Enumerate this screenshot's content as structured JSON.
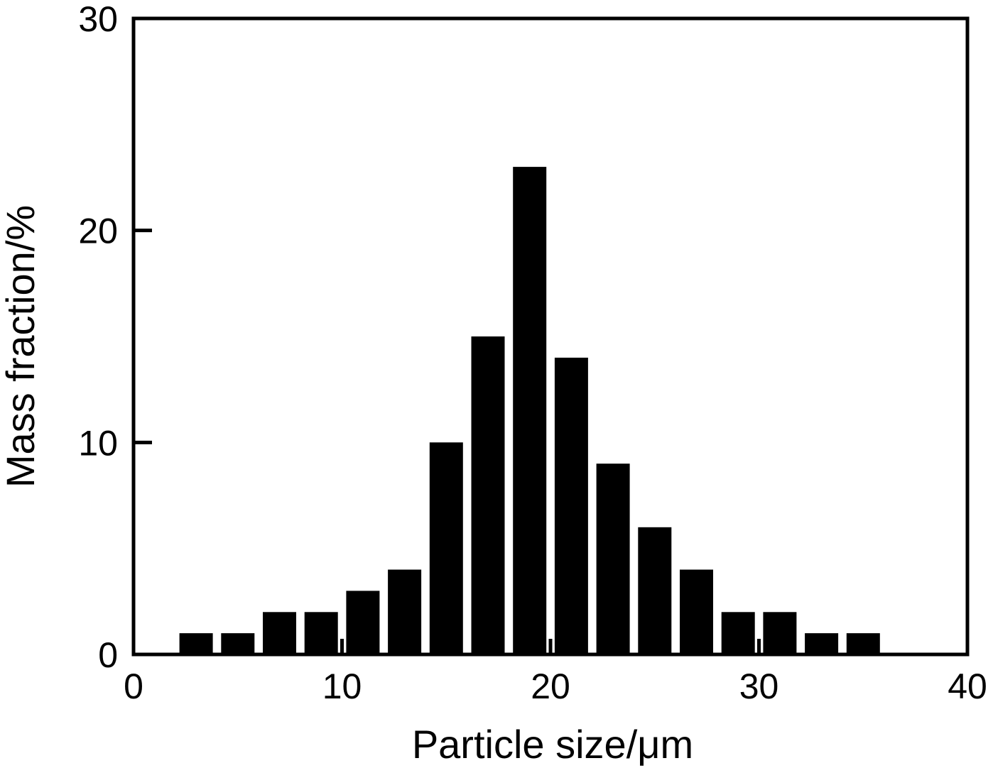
{
  "chart_data": {
    "type": "bar",
    "title": "",
    "xlabel": "Particle size/μm",
    "ylabel": "Mass fraction/%",
    "xlim": [
      0,
      40
    ],
    "ylim": [
      0,
      30
    ],
    "xticks": [
      0,
      10,
      20,
      30,
      40
    ],
    "yticks": [
      0,
      10,
      20,
      30
    ],
    "grid": false,
    "legend": "none",
    "bar_color": "#000000",
    "bar_width": 1.6,
    "x": [
      3,
      5,
      7,
      9,
      11,
      13,
      15,
      17,
      19,
      21,
      23,
      25,
      27,
      29,
      31,
      33,
      35
    ],
    "values": [
      1,
      1,
      2,
      2,
      3,
      4,
      10,
      15,
      23,
      14,
      9,
      6,
      4,
      2,
      2,
      1,
      1
    ]
  }
}
